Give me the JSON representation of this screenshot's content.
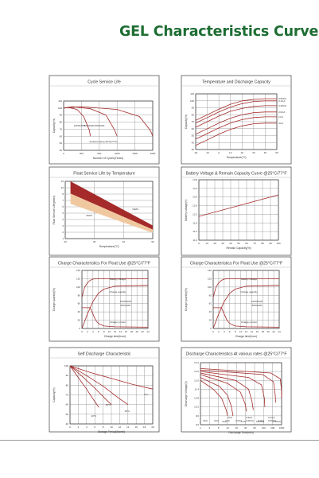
{
  "page": {
    "title": "GEL Characteristics Curve"
  },
  "colors": {
    "title": "#1d6d33",
    "curve": "#a52a2a",
    "band_dark": "#a52a2a",
    "band_light": "#f0c8a0",
    "grid": "#888888",
    "frame": "#555555"
  },
  "chart_data": [
    {
      "type": "line",
      "title": "Cycle Service Life",
      "ylabel": "Capacity(%)",
      "xlabel": "Number of Cycles(Times)",
      "xlim": [
        0,
        2000
      ],
      "ylim": [
        40,
        110
      ],
      "xticks": [
        "0",
        "200",
        "500",
        "1000",
        "1500",
        "2000"
      ],
      "yticks": [
        "40",
        "50",
        "60",
        "70",
        "80",
        "90",
        "100",
        "110"
      ],
      "annotations": [
        "100%DOD",
        "50%DOD",
        "30%DOD",
        "Ambient Temp.25°C(77°F)"
      ],
      "series": [
        {
          "name": "100%DOD",
          "x": [
            0,
            100,
            300,
            450,
            580,
            600
          ],
          "y": [
            100,
            101,
            98,
            88,
            68,
            60
          ]
        },
        {
          "name": "50%DOD",
          "x": [
            0,
            200,
            600,
            950,
            1150,
            1200
          ],
          "y": [
            100,
            102,
            99,
            90,
            68,
            60
          ]
        },
        {
          "name": "30%DOD",
          "x": [
            0,
            400,
            1200,
            1700,
            1950,
            2000
          ],
          "y": [
            100,
            102,
            98,
            88,
            68,
            60
          ]
        }
      ]
    },
    {
      "type": "line",
      "title": "Temperature and Discharge Capacity",
      "ylabel": "Capacity(%)",
      "xlabel": "Temperature(°C)",
      "xlim": [
        -20,
        50
      ],
      "ylim": [
        30,
        110
      ],
      "xticks": [
        "-20",
        "-10",
        "0",
        "10",
        "20",
        "30",
        "40",
        "50"
      ],
      "yticks": [
        "30",
        "40",
        "50",
        "60",
        "70",
        "80",
        "90",
        "100",
        "110"
      ],
      "series": [
        {
          "name": "0.05CA",
          "x": [
            -20,
            -10,
            0,
            10,
            20,
            30,
            40,
            50
          ],
          "y": [
            72,
            80,
            88,
            95,
            100,
            102,
            103,
            103
          ]
        },
        {
          "name": "0.1CA",
          "x": [
            -20,
            -10,
            0,
            10,
            20,
            30,
            40,
            50
          ],
          "y": [
            68,
            76,
            84,
            91,
            96,
            99,
            100,
            100
          ]
        },
        {
          "name": "0.25CA",
          "x": [
            -20,
            -10,
            0,
            10,
            20,
            30,
            40,
            50
          ],
          "y": [
            62,
            70,
            78,
            85,
            89,
            92,
            93,
            93
          ]
        },
        {
          "name": "0.6CA",
          "x": [
            -20,
            -10,
            0,
            10,
            20,
            30,
            40,
            50
          ],
          "y": [
            52,
            60,
            68,
            75,
            80,
            83,
            84,
            84
          ]
        },
        {
          "name": "1CA",
          "x": [
            -20,
            -10,
            0,
            10,
            20,
            30,
            40,
            50
          ],
          "y": [
            45,
            53,
            61,
            68,
            73,
            76,
            77,
            77
          ]
        },
        {
          "name": "2CA",
          "x": [
            -20,
            -10,
            0,
            10,
            20,
            30,
            40,
            50
          ],
          "y": [
            36,
            44,
            52,
            59,
            64,
            67,
            68,
            68
          ]
        }
      ]
    },
    {
      "type": "area",
      "title": "Float Service Life by Temperature",
      "ylabel": "Float Service Life(years)",
      "xlabel": "Temperature(°C)",
      "xlim": [
        10,
        60
      ],
      "ylim": [
        1,
        15
      ],
      "xticks": [
        "20",
        "30",
        "40",
        "50"
      ],
      "yticks": [
        "1",
        "2",
        "3",
        "4",
        "5",
        "6",
        "7",
        "8",
        "10",
        "15"
      ],
      "annotations": [
        "13MA",
        "30AD"
      ],
      "series": [
        {
          "name": "upper",
          "x": [
            13,
            60
          ],
          "y": [
            15,
            4.2
          ]
        },
        {
          "name": "middle",
          "x": [
            13,
            60
          ],
          "y": [
            12,
            3.2
          ]
        },
        {
          "name": "lower",
          "x": [
            13,
            60
          ],
          "y": [
            9.5,
            2.4
          ]
        }
      ]
    },
    {
      "type": "line",
      "title": "Battery Voltage & Remain Capacity Curve @25°C/77°F",
      "ylabel": "Battery voltage(V)",
      "xlabel": "Remain Capacity(%)",
      "xlim": [
        0,
        100
      ],
      "ylim": [
        11.0,
        13.8
      ],
      "xticks": [
        "0",
        "10",
        "20",
        "30",
        "40",
        "50",
        "60",
        "70",
        "80",
        "90",
        "100"
      ],
      "yticks": [
        "11.0",
        "11.4",
        "11.8",
        "12.2",
        "12.6",
        "13.0",
        "13.4",
        "13.8"
      ],
      "series": [
        {
          "name": "voltage",
          "x": [
            0,
            100
          ],
          "y": [
            12.1,
            13.1
          ]
        }
      ]
    },
    {
      "type": "line",
      "title": "Charge Characteristics For Float Use @25°C/77°F",
      "ylabel": "Charge quantity(%)",
      "xlabel": "Charge time(hour)",
      "xlim": [
        0,
        24
      ],
      "ylim": [
        0,
        140
      ],
      "xticks": [
        "0",
        "2",
        "4",
        "6",
        "8",
        "10",
        "12",
        "14",
        "16",
        "18",
        "20",
        "22",
        "24"
      ],
      "yticks": [
        "0",
        "20",
        "40",
        "60",
        "80",
        "100",
        "120",
        "140"
      ],
      "annotations": [
        "Battery voltage",
        "Charge quantity",
        "Charge current",
        "100%DOD",
        "50%DOD"
      ],
      "series": [
        {
          "name": "Battery voltage",
          "x": [
            0,
            1,
            2,
            3,
            4,
            6,
            10,
            24
          ],
          "y": [
            75,
            100,
            110,
            116,
            119,
            120,
            120,
            120
          ]
        },
        {
          "name": "Charge quantity",
          "x": [
            0,
            2,
            4,
            6,
            8,
            12,
            24
          ],
          "y": [
            0,
            35,
            65,
            85,
            95,
            102,
            104
          ]
        },
        {
          "name": "Charge current",
          "x": [
            0,
            3,
            4,
            5,
            6,
            8,
            12,
            24
          ],
          "y": [
            50,
            50,
            35,
            20,
            12,
            6,
            4,
            3
          ]
        }
      ]
    },
    {
      "type": "line",
      "title": "Charge Characteristics For Float Use @25°C/77°F",
      "ylabel": "Charge quantity(%)",
      "xlabel": "Charge time(hour)",
      "xlim": [
        0,
        24
      ],
      "ylim": [
        0,
        140
      ],
      "xticks": [
        "0",
        "2",
        "4",
        "6",
        "8",
        "10",
        "12",
        "14",
        "16",
        "18",
        "20",
        "22",
        "24"
      ],
      "yticks": [
        "0",
        "20",
        "40",
        "60",
        "80",
        "100",
        "120",
        "140"
      ],
      "annotations": [
        "Battery voltage",
        "Charge quantity",
        "Charge current",
        "100%DOD",
        "50%DOD"
      ],
      "series": [
        {
          "name": "Battery voltage",
          "x": [
            0,
            1,
            2,
            3,
            4,
            6,
            10,
            24
          ],
          "y": [
            75,
            100,
            110,
            116,
            119,
            120,
            120,
            120
          ]
        },
        {
          "name": "Charge quantity",
          "x": [
            0,
            2,
            4,
            6,
            8,
            12,
            24
          ],
          "y": [
            0,
            35,
            65,
            85,
            95,
            102,
            104
          ]
        },
        {
          "name": "Charge current",
          "x": [
            0,
            3,
            4,
            5,
            6,
            8,
            12,
            24
          ],
          "y": [
            50,
            50,
            35,
            20,
            12,
            6,
            4,
            3
          ]
        }
      ]
    },
    {
      "type": "line",
      "title": "Self Discharge Characteristic",
      "ylabel": "Capacity(%)",
      "xlabel": "Storage Period(Month)",
      "xlim": [
        0,
        20
      ],
      "ylim": [
        40,
        100
      ],
      "xticks": [
        "0",
        "2",
        "4",
        "6",
        "8",
        "10",
        "12",
        "14",
        "16",
        "18",
        "20"
      ],
      "yticks": [
        "40",
        "50",
        "60",
        "70",
        "80",
        "90",
        "100"
      ],
      "annotations": [
        "5°C",
        "25°C",
        "30°C",
        "40°C"
      ],
      "series": [
        {
          "name": "5°C",
          "x": [
            0,
            5,
            10,
            15,
            20
          ],
          "y": [
            100,
            93,
            87,
            81,
            76
          ]
        },
        {
          "name": "25°C",
          "x": [
            0,
            4,
            8,
            12,
            14
          ],
          "y": [
            100,
            90,
            79,
            66,
            60
          ]
        },
        {
          "name": "30°C",
          "x": [
            0,
            3,
            6,
            9,
            10
          ],
          "y": [
            100,
            89,
            77,
            64,
            60
          ]
        },
        {
          "name": "40°C",
          "x": [
            0,
            2,
            4,
            6,
            7
          ],
          "y": [
            100,
            88,
            76,
            63,
            57
          ]
        }
      ]
    },
    {
      "type": "line",
      "title": "Discharge Characteristics At various rates @25°C/77°F",
      "ylabel": "Discharge Voltage(V)",
      "xlabel": "Discharge Time(min)",
      "xlim": [
        1,
        1000
      ],
      "ylim": [
        9.0,
        13.2
      ],
      "xticks": [
        "1",
        "2",
        "5",
        "10",
        "20",
        "30",
        "60",
        "100",
        "300",
        "1000"
      ],
      "yticks": [
        "9.0",
        "9.6",
        "10.2",
        "10.8",
        "11.4",
        "12.0",
        "12.6",
        "13.2"
      ],
      "annotations": [
        "3CA",
        "2CA",
        "1CA",
        "0.6CA",
        "0.25CA",
        "0.1CA",
        "0.05CA"
      ],
      "series": [
        {
          "name": "3CA",
          "x": [
            1,
            3,
            6,
            9,
            10
          ],
          "y": [
            12.0,
            11.4,
            10.8,
            10.0,
            9.6
          ]
        },
        {
          "name": "2CA",
          "x": [
            1,
            5,
            10,
            14,
            16
          ],
          "y": [
            12.2,
            11.6,
            11.0,
            10.2,
            9.6
          ]
        },
        {
          "name": "1CA",
          "x": [
            1,
            10,
            30,
            45,
            50
          ],
          "y": [
            12.4,
            11.8,
            11.2,
            10.4,
            9.9
          ]
        },
        {
          "name": "0.6CA",
          "x": [
            1,
            20,
            60,
            80,
            90
          ],
          "y": [
            12.5,
            12.0,
            11.4,
            10.6,
            10.0
          ]
        },
        {
          "name": "0.25CA",
          "x": [
            1,
            60,
            180,
            230,
            240
          ],
          "y": [
            12.6,
            12.2,
            11.7,
            10.8,
            10.2
          ]
        },
        {
          "name": "0.1CA",
          "x": [
            1,
            200,
            500,
            580,
            600
          ],
          "y": [
            12.7,
            12.4,
            11.9,
            11.0,
            10.5
          ]
        },
        {
          "name": "0.05CA",
          "x": [
            1,
            400,
            900,
            980,
            1000
          ],
          "y": [
            12.8,
            12.5,
            12.1,
            11.4,
            10.8
          ]
        }
      ]
    }
  ]
}
